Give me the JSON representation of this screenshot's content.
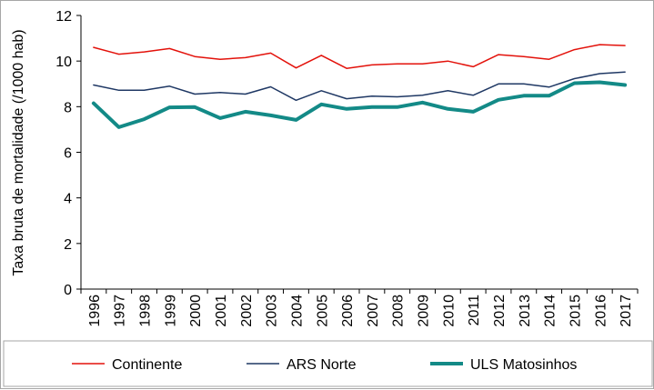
{
  "chart_data": {
    "type": "line",
    "title": "",
    "xlabel": "",
    "ylabel": "Taxa bruta de mortalidade (/1000 hab)",
    "ylim": [
      0,
      12
    ],
    "yticks": [
      "0",
      "2",
      "4",
      "6",
      "8",
      "10",
      "12"
    ],
    "grid": false,
    "legend_position": "bottom",
    "categories": [
      "1996",
      "1997",
      "1998",
      "1999",
      "2000",
      "2001",
      "2002",
      "2003",
      "2004",
      "2005",
      "2006",
      "2007",
      "2008",
      "2009",
      "2010",
      "2011",
      "2012",
      "2013",
      "2014",
      "2015",
      "2016",
      "2017"
    ],
    "series": [
      {
        "name": "Continente",
        "color": "#e3120b",
        "stroke": "thin",
        "values": [
          10.6,
          10.3,
          10.4,
          10.55,
          10.2,
          10.08,
          10.15,
          10.35,
          9.7,
          10.25,
          9.68,
          9.83,
          9.88,
          9.88,
          10.0,
          9.75,
          10.28,
          10.2,
          10.08,
          10.5,
          10.72,
          10.68
        ]
      },
      {
        "name": "ARS Norte",
        "color": "#1f3864",
        "stroke": "thin",
        "values": [
          8.95,
          8.72,
          8.72,
          8.9,
          8.55,
          8.62,
          8.55,
          8.87,
          8.28,
          8.7,
          8.35,
          8.46,
          8.43,
          8.5,
          8.7,
          8.5,
          9.0,
          9.0,
          8.86,
          9.23,
          9.45,
          9.52
        ]
      },
      {
        "name": "ULS Matosinhos",
        "color": "#138a87",
        "stroke": "thick",
        "values": [
          8.15,
          7.1,
          7.45,
          7.97,
          7.98,
          7.5,
          7.78,
          7.62,
          7.42,
          8.1,
          7.9,
          7.98,
          7.98,
          8.18,
          7.9,
          7.78,
          8.3,
          8.48,
          8.48,
          9.03,
          9.07,
          8.95
        ]
      }
    ]
  }
}
